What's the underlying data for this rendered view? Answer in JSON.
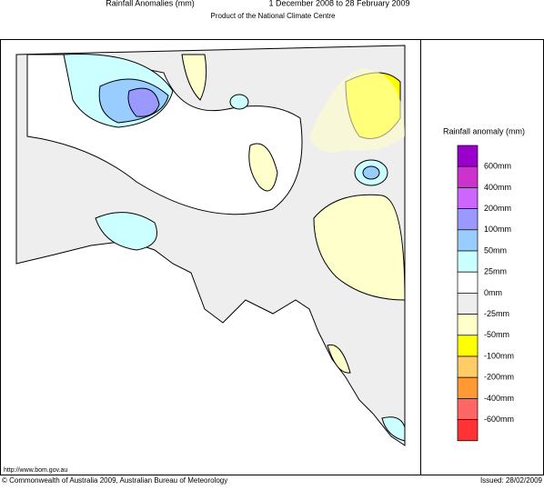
{
  "header": {
    "title": "Rainfall Anomalies (mm)",
    "period": "1 December 2008 to 28 February 2009",
    "subtitle": "Product of the National Climate Centre"
  },
  "legend": {
    "title": "Rainfall anomaly (mm)",
    "labels": [
      "600mm",
      "400mm",
      "200mm",
      "100mm",
      "50mm",
      "25mm",
      "0mm",
      "-25mm",
      "-50mm",
      "-100mm",
      "-200mm",
      "-400mm",
      "-600mm"
    ],
    "colors": [
      "#9900cc",
      "#cc33cc",
      "#cc66ff",
      "#9999ff",
      "#99ccff",
      "#ccffff",
      "#ffffff",
      "#eeeeee",
      "#ffffcc",
      "#ffff00",
      "#ffcc66",
      "#ff9933",
      "#ff6666",
      "#ff3333"
    ]
  },
  "footer": {
    "url": "http://www.bom.gov.au",
    "copyright": "© Commonwealth of Australia 2009, Australian Bureau of Meteorology",
    "issued": "Issued: 28/02/2009"
  }
}
